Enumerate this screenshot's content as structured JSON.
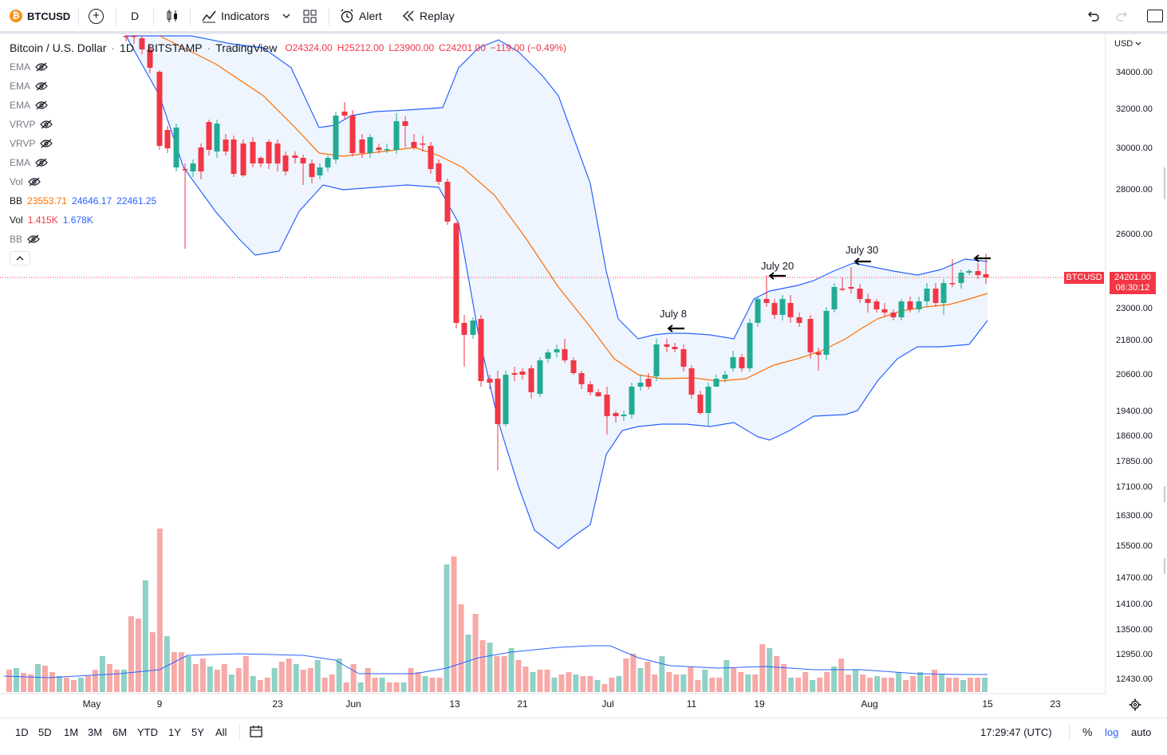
{
  "toolbar": {
    "symbol": "BTCUSD",
    "interval": "D",
    "indicators_label": "Indicators",
    "alert_label": "Alert",
    "replay_label": "Replay"
  },
  "legend": {
    "title": "Bitcoin / U.S. Dollar",
    "interval": "1D",
    "exchange": "BITSTAMP",
    "source": "TradingView",
    "open": "O24324.00",
    "high": "H25212.00",
    "low": "L23900.00",
    "close": "C24201.00",
    "change": "−119.00 (−0.49%)",
    "hidden_items": [
      "EMA",
      "EMA",
      "EMA",
      "VRVP",
      "VRVP",
      "EMA",
      "Vol"
    ],
    "bb": {
      "label": "BB",
      "basis": "23553.71",
      "upper": "24646.17",
      "lower": "22461.25"
    },
    "vol": {
      "label": "Vol",
      "value": "1.415K",
      "ma": "1.678K"
    },
    "bb2_label": "BB"
  },
  "price_scale": {
    "currency": "USD",
    "ticks": [
      "34000.00",
      "32000.00",
      "30000.00",
      "28000.00",
      "26000.00",
      "23000.00",
      "21800.00",
      "20600.00",
      "19400.00",
      "18600.00",
      "17850.00",
      "17100.00",
      "16300.00",
      "15500.00",
      "14700.00",
      "14100.00",
      "13500.00",
      "12950.00",
      "12430.00"
    ]
  },
  "last_price": {
    "symbol": "BTCUSD",
    "price": "24201.00",
    "countdown": "06:30:12"
  },
  "time_axis": {
    "labels": [
      "May",
      "9",
      "23",
      "Jun",
      "13",
      "21",
      "Jul",
      "11",
      "19",
      "Aug",
      "15",
      "23"
    ]
  },
  "annotations": [
    "July 8",
    "July 20",
    "July 30"
  ],
  "colors": {
    "up": "#22ab94",
    "down": "#f23645",
    "bb": "#2962ff",
    "basis": "#ff6d00",
    "fill": "#e3effd",
    "vol_up": "#8fd1c6",
    "vol_down": "#f7a9a7"
  },
  "bottom": {
    "ranges": [
      "1D",
      "5D",
      "1M",
      "3M",
      "6M",
      "YTD",
      "1Y",
      "5Y",
      "All"
    ],
    "clock": "17:29:47 (UTC)",
    "percent": "%",
    "log": "log",
    "auto": "auto"
  },
  "chart_data": {
    "type": "candlestick",
    "title": "Bitcoin / U.S. Dollar",
    "x_labels": [
      "May",
      "9",
      "23",
      "Jun",
      "13",
      "21",
      "Jul",
      "11",
      "19",
      "Aug",
      "15",
      "23"
    ],
    "y_ticks": [
      34000,
      32000,
      30000,
      28000,
      26000,
      23000,
      21800,
      20600,
      19400,
      18600,
      17850,
      17100,
      16300,
      15500
    ],
    "scale": "log",
    "last_close": 24201,
    "annotations": [
      {
        "text": "July 8",
        "price": 22500
      },
      {
        "text": "July 20",
        "price": 24200
      },
      {
        "text": "July 30",
        "price": 24600
      }
    ]
  }
}
